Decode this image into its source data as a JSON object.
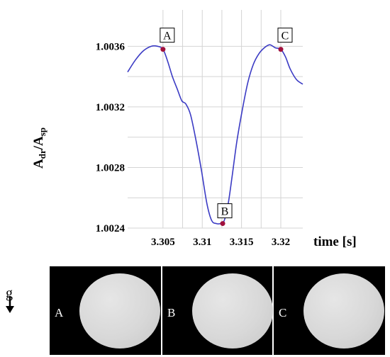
{
  "chart_data": {
    "type": "line",
    "xlabel": "time [s]",
    "ylabel_main": "A",
    "ylabel_sub1": "dr",
    "ylabel_sep": "/A",
    "ylabel_sub2": "sp",
    "xlim": [
      3.3005,
      3.3228
    ],
    "ylim": [
      1.0024,
      1.00384
    ],
    "xticks": [
      {
        "value": 3.305,
        "label": "3.305"
      },
      {
        "value": 3.31,
        "label": "3.31"
      },
      {
        "value": 3.315,
        "label": "3.315"
      },
      {
        "value": 3.32,
        "label": "3.32"
      }
    ],
    "yticks": [
      {
        "value": 1.0024,
        "label": "1.0024"
      },
      {
        "value": 1.0028,
        "label": "1.0028"
      },
      {
        "value": 1.0032,
        "label": "1.0032"
      },
      {
        "value": 1.0036,
        "label": "1.0036"
      }
    ],
    "grid": true,
    "line_color": "#3b3bc4",
    "marker_color": "#a0103c",
    "series": [
      {
        "x": [
          3.3005,
          3.3015,
          3.3025,
          3.3035,
          3.3043,
          3.305,
          3.3056,
          3.3062,
          3.3068,
          3.3074,
          3.3079,
          3.3085,
          3.3092,
          3.3099,
          3.3106,
          3.3112,
          3.3118,
          3.3123,
          3.3128,
          3.3133,
          3.3138,
          3.3144,
          3.3151,
          3.3158,
          3.3165,
          3.3172,
          3.3179,
          3.3186,
          3.3193,
          3.32,
          3.3206,
          3.3212,
          3.322,
          3.3228
        ],
        "y": [
          1.00343,
          1.00351,
          1.00357,
          1.0036,
          1.0036,
          1.00358,
          1.0035,
          1.0034,
          1.00332,
          1.00324,
          1.00322,
          1.00315,
          1.00298,
          1.00278,
          1.00256,
          1.00245,
          1.00243,
          1.00243,
          1.00245,
          1.00256,
          1.00274,
          1.00297,
          1.00318,
          1.00336,
          1.00348,
          1.00355,
          1.00359,
          1.00361,
          1.00359,
          1.00358,
          1.00353,
          1.00345,
          1.00338,
          1.00335
        ]
      }
    ],
    "points": [
      {
        "label": "A",
        "x": 3.305,
        "y": 1.00358
      },
      {
        "label": "B",
        "x": 3.3126,
        "y": 1.00243
      },
      {
        "label": "C",
        "x": 3.32,
        "y": 1.00358
      }
    ]
  },
  "gravity_label": "g",
  "frames": [
    {
      "label": "A"
    },
    {
      "label": "B"
    },
    {
      "label": "C"
    }
  ]
}
